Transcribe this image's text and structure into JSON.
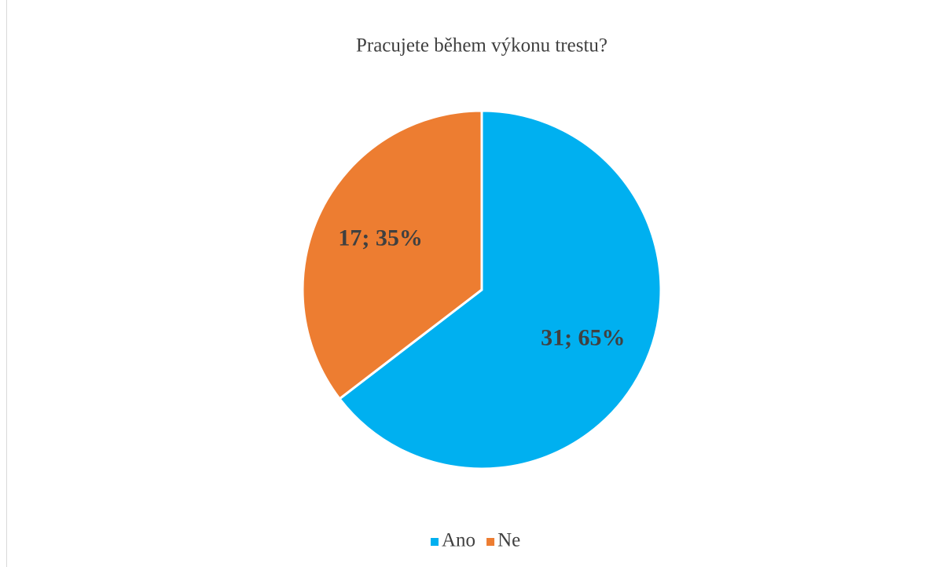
{
  "chart_data": {
    "type": "pie",
    "title": "Pracujete během výkonu trestu?",
    "categories": [
      "Ano",
      "Ne"
    ],
    "values": [
      31,
      17
    ],
    "value_labels": [
      "31; 65%",
      "17; 35%"
    ],
    "colors": [
      "#00b0f0",
      "#ed7d31"
    ],
    "legend": "bottom"
  }
}
